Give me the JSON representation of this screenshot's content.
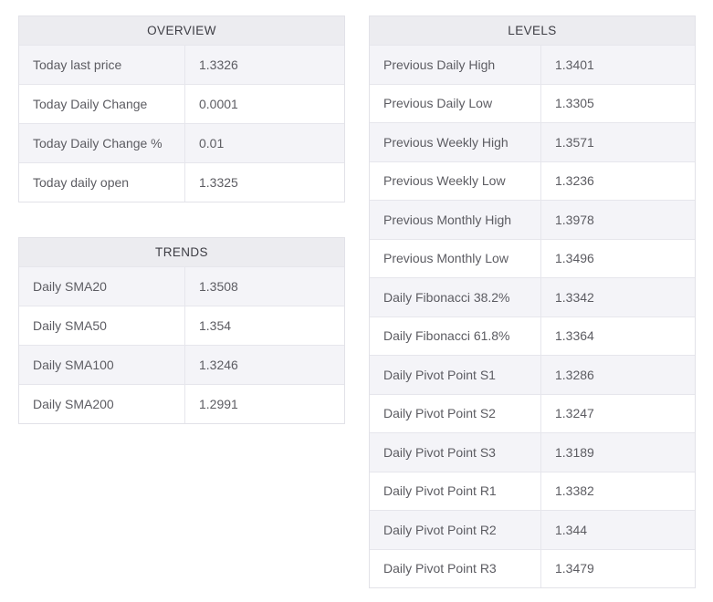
{
  "theme": {
    "header_bg": "#ececf0",
    "row_bg": "#ffffff",
    "row_alt_bg": "#f4f4f8",
    "border_color": "#e2e2e8",
    "header_text_color": "#3d3d44",
    "cell_text_color": "#5c5c62"
  },
  "overview": {
    "title": "OVERVIEW",
    "rows": [
      {
        "label": "Today last price",
        "value": "1.3326"
      },
      {
        "label": "Today Daily Change",
        "value": "0.0001"
      },
      {
        "label": "Today Daily Change %",
        "value": "0.01"
      },
      {
        "label": "Today daily open",
        "value": "1.3325"
      }
    ]
  },
  "trends": {
    "title": "TRENDS",
    "rows": [
      {
        "label": "Daily SMA20",
        "value": "1.3508"
      },
      {
        "label": "Daily SMA50",
        "value": "1.354"
      },
      {
        "label": "Daily SMA100",
        "value": "1.3246"
      },
      {
        "label": "Daily SMA200",
        "value": "1.2991"
      }
    ]
  },
  "levels": {
    "title": "LEVELS",
    "rows": [
      {
        "label": "Previous Daily High",
        "value": "1.3401"
      },
      {
        "label": "Previous Daily Low",
        "value": "1.3305"
      },
      {
        "label": "Previous Weekly High",
        "value": "1.3571"
      },
      {
        "label": "Previous Weekly Low",
        "value": "1.3236"
      },
      {
        "label": "Previous Monthly High",
        "value": "1.3978"
      },
      {
        "label": "Previous Monthly Low",
        "value": "1.3496"
      },
      {
        "label": "Daily Fibonacci 38.2%",
        "value": "1.3342"
      },
      {
        "label": "Daily Fibonacci 61.8%",
        "value": "1.3364"
      },
      {
        "label": "Daily Pivot Point S1",
        "value": "1.3286"
      },
      {
        "label": "Daily Pivot Point S2",
        "value": "1.3247"
      },
      {
        "label": "Daily Pivot Point S3",
        "value": "1.3189"
      },
      {
        "label": "Daily Pivot Point R1",
        "value": "1.3382"
      },
      {
        "label": "Daily Pivot Point R2",
        "value": "1.344"
      },
      {
        "label": "Daily Pivot Point R3",
        "value": "1.3479"
      }
    ]
  }
}
